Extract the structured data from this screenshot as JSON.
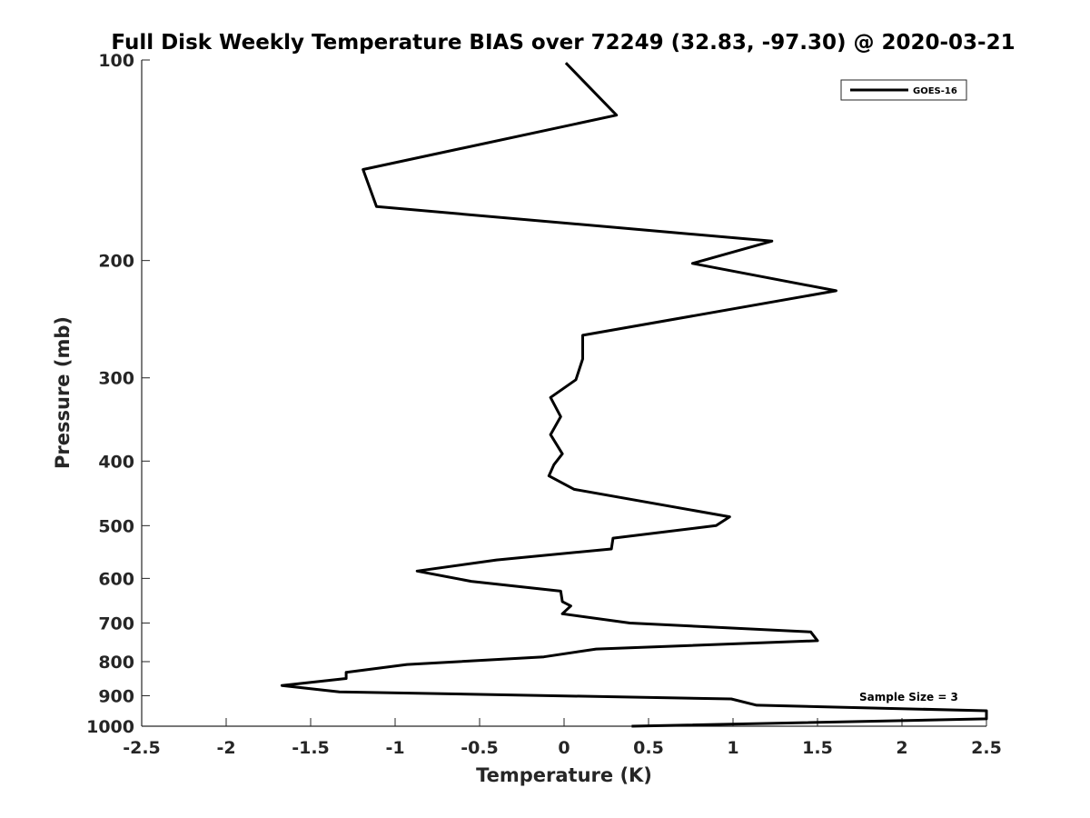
{
  "chart_data": {
    "type": "line",
    "title": "Full Disk Weekly Temperature BIAS over 72249 (32.83, -97.30) @ 2020-03-21",
    "xlabel": "Temperature (K)",
    "ylabel": "Pressure (mb)",
    "xlim": [
      -2.5,
      2.5
    ],
    "ylim": [
      100,
      1000
    ],
    "y_scale": "log",
    "y_reversed": true,
    "x_ticks": [
      -2.5,
      -2,
      -1.5,
      -1,
      -0.5,
      0,
      0.5,
      1,
      1.5,
      2,
      2.5
    ],
    "x_tick_labels": [
      "-2.5",
      "-2",
      "-1.5",
      "-1",
      "-0.5",
      "0",
      "0.5",
      "1",
      "1.5",
      "2",
      "2.5"
    ],
    "y_ticks": [
      100,
      200,
      300,
      400,
      500,
      600,
      700,
      800,
      900,
      1000
    ],
    "y_tick_labels": [
      "100",
      "200",
      "300",
      "400",
      "500",
      "600",
      "700",
      "800",
      "900",
      "1000"
    ],
    "grid": false,
    "legend_position": "top-right",
    "series": [
      {
        "name": "GOES-16",
        "color": "#000000",
        "points": [
          {
            "x": 0.01,
            "y": 101
          },
          {
            "x": 0.31,
            "y": 121
          },
          {
            "x": -1.19,
            "y": 146
          },
          {
            "x": -1.11,
            "y": 166
          },
          {
            "x": 1.23,
            "y": 187
          },
          {
            "x": 0.76,
            "y": 202
          },
          {
            "x": 1.61,
            "y": 222
          },
          {
            "x": 0.11,
            "y": 259
          },
          {
            "x": 0.11,
            "y": 281
          },
          {
            "x": 0.07,
            "y": 302
          },
          {
            "x": -0.08,
            "y": 321
          },
          {
            "x": -0.02,
            "y": 343
          },
          {
            "x": -0.08,
            "y": 365
          },
          {
            "x": -0.01,
            "y": 390
          },
          {
            "x": -0.06,
            "y": 405
          },
          {
            "x": -0.09,
            "y": 421
          },
          {
            "x": 0.06,
            "y": 441
          },
          {
            "x": 0.98,
            "y": 485
          },
          {
            "x": 0.9,
            "y": 500
          },
          {
            "x": 0.29,
            "y": 522
          },
          {
            "x": 0.28,
            "y": 542
          },
          {
            "x": -0.4,
            "y": 563
          },
          {
            "x": -0.87,
            "y": 585
          },
          {
            "x": -0.55,
            "y": 606
          },
          {
            "x": -0.02,
            "y": 627
          },
          {
            "x": -0.01,
            "y": 650
          },
          {
            "x": 0.04,
            "y": 660
          },
          {
            "x": -0.01,
            "y": 678
          },
          {
            "x": 0.39,
            "y": 700
          },
          {
            "x": 1.46,
            "y": 722
          },
          {
            "x": 1.5,
            "y": 744
          },
          {
            "x": 0.19,
            "y": 766
          },
          {
            "x": -0.12,
            "y": 787
          },
          {
            "x": -0.93,
            "y": 808
          },
          {
            "x": -1.29,
            "y": 830
          },
          {
            "x": -1.29,
            "y": 848
          },
          {
            "x": -1.67,
            "y": 869
          },
          {
            "x": -1.33,
            "y": 888
          },
          {
            "x": 0.99,
            "y": 910
          },
          {
            "x": 1.14,
            "y": 930
          },
          {
            "x": 2.5,
            "y": 948
          },
          {
            "x": 2.5,
            "y": 975
          },
          {
            "x": 0.4,
            "y": 1000
          }
        ]
      }
    ],
    "annotations": [
      {
        "text": "Sample Size = 3"
      }
    ]
  }
}
